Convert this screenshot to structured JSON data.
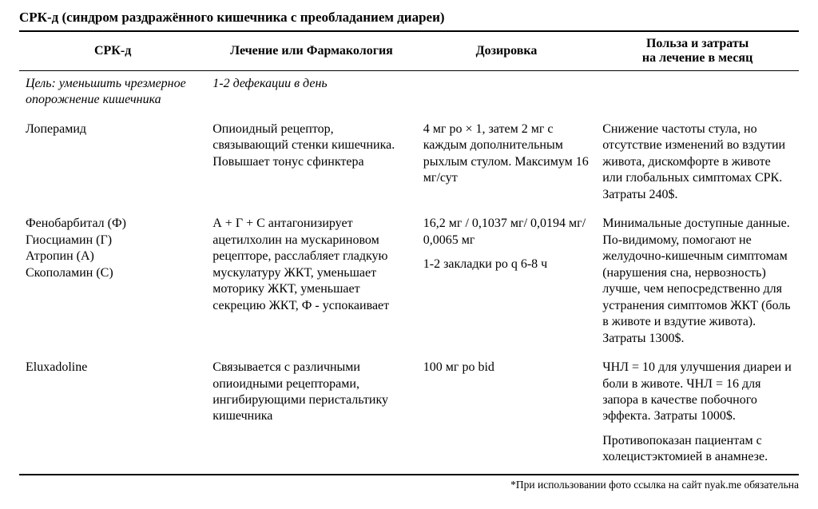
{
  "title": "СРК-д (синдром раздражённого кишечника с преобладанием диареи)",
  "columns": {
    "c1": "СРК-д",
    "c2": "Лечение или Фармакология",
    "c3": "Дозировка",
    "c4": "Польза и затраты\nна лечение в месяц"
  },
  "goal_row": {
    "c1": "Цель: уменьшить чрезмерное опорожнение кишечника",
    "c2": "1-2 дефекации в день"
  },
  "rows": [
    {
      "c1": "Лоперамид",
      "c2": "Опиоидный рецептор, связывающий стенки кишечника. Повышает тонус сфинктера",
      "c3": "4 мг po × 1, затем 2 мг с каждым дополнительным рыхлым стулом. Максимум 16 мг/сут",
      "c4": "Снижение частоты стула, но отсутствие изменений во вздутии живота, дискомфорте в животе или глобальных симптомах СРК. Затраты 240$."
    },
    {
      "c1_lines": [
        "Фенобарбитал (Ф)",
        "Гиосциамин (Г)",
        "Атропин (А)",
        "Скополамин (С)"
      ],
      "c2": "А + Г + С антагонизирует ацетилхолин на мускариновом рецепторе, расслабляет гладкую мускулатуру ЖКТ, уменьшает моторику ЖКТ, уменьшает секрецию ЖКТ, Ф - успокаивает",
      "c3_p1": "16,2 мг / 0,1037 мг/ 0,0194 мг/ 0,0065 мг",
      "c3_p2": "1-2 закладки po q 6-8 ч",
      "c4": "Минимальные доступные данные. По-видимому, помогают не желудочно-кишечным симптомам (нарушения сна, нервозность) лучше, чем непосредственно для устранения симптомов ЖКТ (боль в животе и вздутие живота). Затраты 1300$."
    },
    {
      "c1": "Eluxadoline",
      "c2": "Связывается с различными опиоидными рецепторами, ингибирующими перистальтику кишечника",
      "c3": "100 мг po bid",
      "c4_p1": "ЧНЛ = 10 для улучшения диареи и боли в животе. ЧНЛ = 16 для запора в качестве побочного эффекта. Затраты 1000$.",
      "c4_p2": "Противопоказан пациентам с холецистэктомией в анамнезе."
    }
  ],
  "footnote": "*При использовании фото ссылка на сайт nyak.me обязательна",
  "style": {
    "font_family": "Times New Roman",
    "background": "#ffffff",
    "text_color": "#000000",
    "rule_thick": 2,
    "rule_thin": 1,
    "col_widths_pct": [
      24,
      27,
      23,
      26
    ]
  }
}
